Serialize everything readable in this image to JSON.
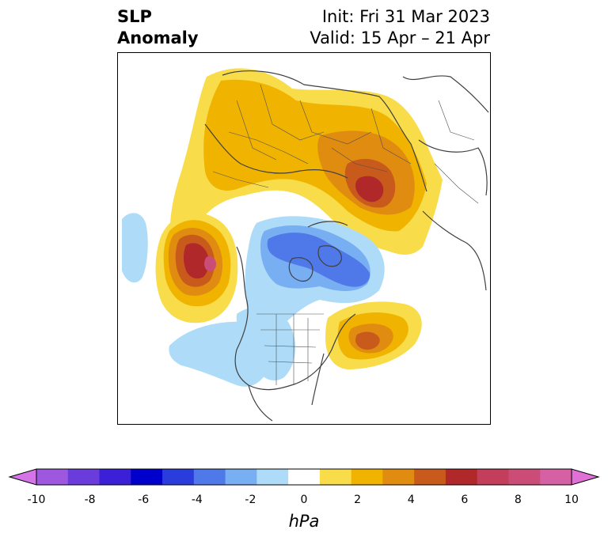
{
  "title": {
    "left_line1": "SLP",
    "left_line2": "Anomaly",
    "right_line1": "Init: Fri 31 Mar 2023",
    "right_line2": "Valid: 15 Apr – 21 Apr"
  },
  "colorbar": {
    "unit": "hPa",
    "ticks": [
      "-10",
      "-8",
      "-6",
      "-4",
      "-2",
      "0",
      "2",
      "4",
      "6",
      "8",
      "10"
    ],
    "colors": [
      "#d474e6",
      "#9e58e0",
      "#6a3cdb",
      "#3a20d6",
      "#0000cc",
      "#2a3cdc",
      "#4f78e8",
      "#78aef2",
      "#aedcf8",
      "#ffffff",
      "#f8dc4a",
      "#f0b400",
      "#e08c10",
      "#c85a1c",
      "#b0282a",
      "#c23e5a",
      "#cc4c78",
      "#d660a4",
      "#e070d6"
    ],
    "extend": "both"
  }
}
